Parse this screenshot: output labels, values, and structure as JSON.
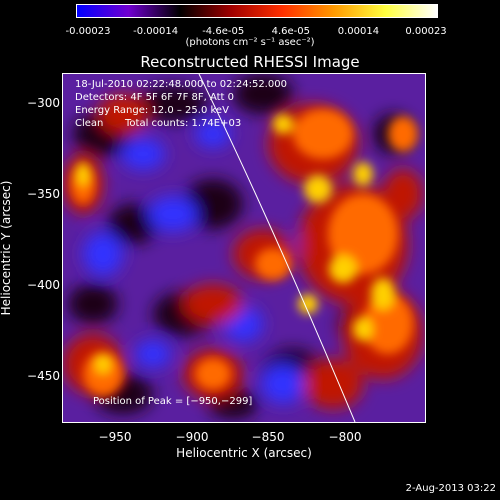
{
  "colorbar": {
    "tick_labels": [
      "-0.00023",
      "-0.00014",
      "-4.6e-05",
      "4.6e-05",
      "0.00014",
      "0.00023"
    ],
    "units": "(photons cm⁻² s⁻¹ asec⁻²)",
    "gradient_colors": [
      "#0000ff",
      "#7000d0",
      "#000000",
      "#a00000",
      "#ff3000",
      "#ff9a00",
      "#ffff40",
      "#ffffff"
    ]
  },
  "title": "Reconstructed RHESSI Image",
  "annotations": {
    "time_range": "18-Jul-2010 02:22:48.000 to 02:24:52.000",
    "detectors": "Detectors: 4F 5F 6F 7F 8F, Att 0",
    "energy_range": "Energy Range: 12.0 – 25.0 keV",
    "clean": "Clean",
    "total_counts": "Total counts: 1.74E+03",
    "peak": "Position of Peak = [−950,−299]"
  },
  "axes": {
    "xlabel": "Heliocentric X (arcsec)",
    "ylabel": "Heliocentric Y (arcsec)",
    "x_ticks": [
      "−950",
      "−900",
      "−850",
      "−800"
    ],
    "y_ticks": [
      "−300",
      "−350",
      "−400",
      "−450"
    ]
  },
  "footer": "2-Aug-2013 03:22",
  "image_palette": {
    "background": "#5a1fa0",
    "blue": "#3030ff",
    "dark": "#1a0018",
    "red": "#c01800",
    "orange": "#ff6a00",
    "yellow": "#ffd000",
    "limb": "#ffffff"
  }
}
